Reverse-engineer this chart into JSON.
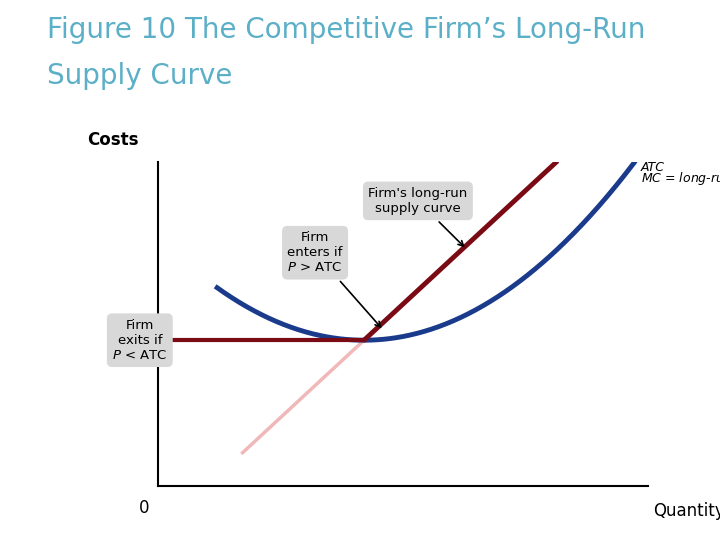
{
  "title_line1": "Figure 10 The Competitive Firm’s Long-Run",
  "title_line2": "Supply Curve",
  "title_color": "#5bafc7",
  "title_fontsize": 20,
  "ylabel": "Costs",
  "xlabel": "Quantity",
  "background_color": "#ffffff",
  "plot_bg_color": "#ffffff",
  "atc_color": "#1a3a8c",
  "mc_color": "#7a0a14",
  "horiz_color": "#7a0a14",
  "pink_color": "#f0b8b8",
  "ann_box_color": "#d8d8d8",
  "xlim": [
    0,
    10
  ],
  "ylim": [
    0,
    10
  ],
  "min_atc_x": 4.2,
  "min_atc_y": 4.5,
  "price_level_y": 4.5,
  "zero_label": "0"
}
